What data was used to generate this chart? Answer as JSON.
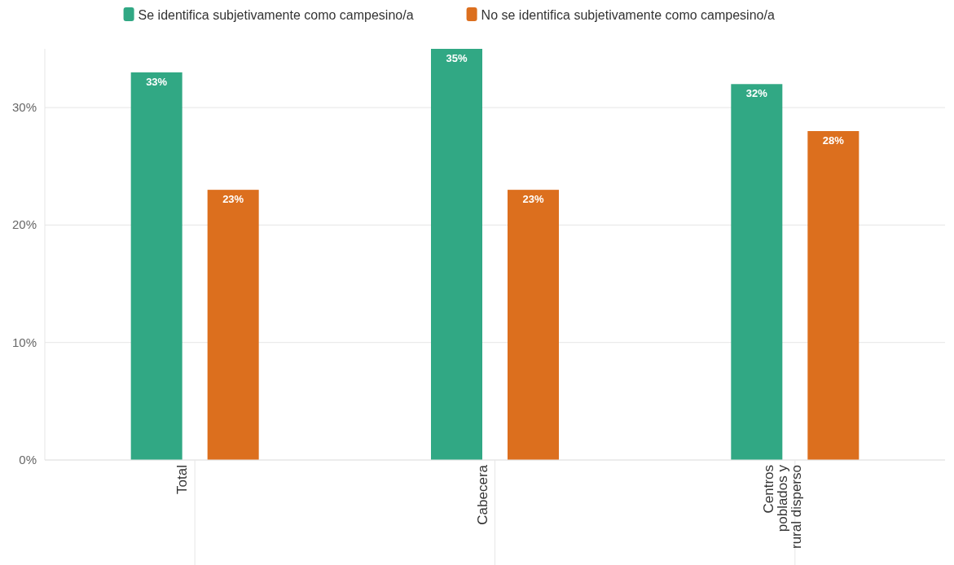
{
  "chart_data": {
    "type": "bar",
    "categories": [
      "Total",
      "Cabecera",
      "Centros poblados y rural disperso"
    ],
    "series": [
      {
        "name": "Se identifica subjetivamente como campesino/a",
        "color": "#31a884",
        "values": [
          33,
          35,
          32
        ],
        "value_labels": [
          "33%",
          "35%",
          "32%"
        ]
      },
      {
        "name": "No se identifica subjetivamente como campesino/a",
        "color": "#dc6f1e",
        "values": [
          23,
          23,
          28
        ],
        "value_labels": [
          "23%",
          "23%",
          "28%"
        ]
      }
    ],
    "ylim": [
      0,
      35
    ],
    "yticks": [
      {
        "value": 0,
        "label": "0%"
      },
      {
        "value": 10,
        "label": "10%"
      },
      {
        "value": 20,
        "label": "20%"
      },
      {
        "value": 30,
        "label": "30%"
      }
    ],
    "grid": "y",
    "legend": "top"
  }
}
